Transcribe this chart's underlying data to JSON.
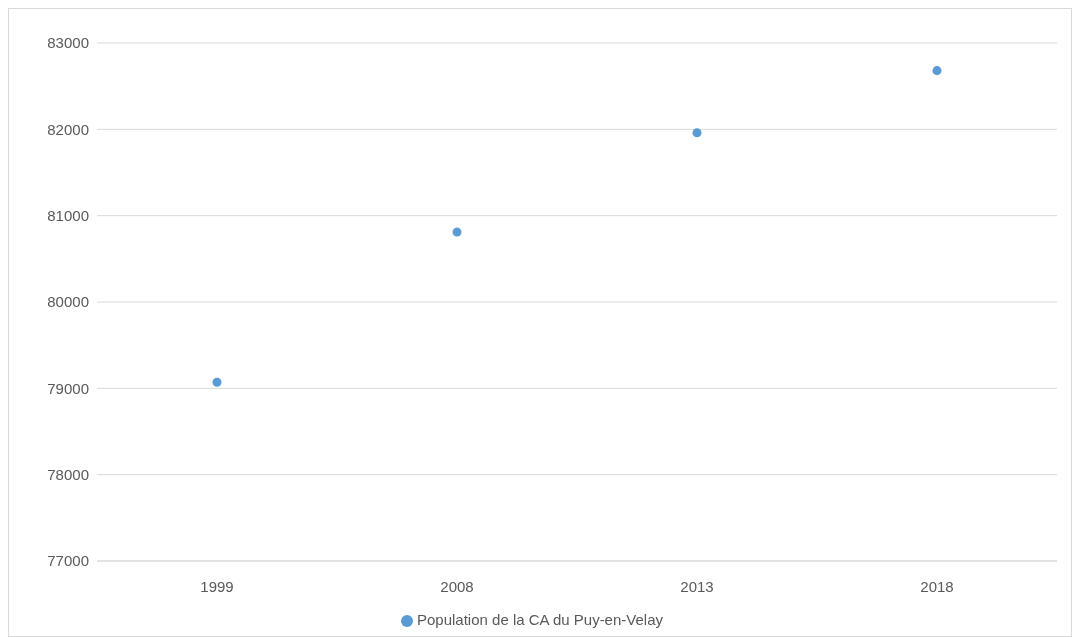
{
  "chart_data": {
    "type": "scatter",
    "categories": [
      "1999",
      "2008",
      "2013",
      "2018"
    ],
    "series": [
      {
        "name": "Population de la CA du Puy-en-Velay",
        "color": "#5b9bd5",
        "values": [
          79070,
          80810,
          81960,
          82680
        ]
      }
    ],
    "ylim": [
      77000,
      83000
    ],
    "yticks": [
      77000,
      78000,
      79000,
      80000,
      81000,
      82000,
      83000
    ],
    "grid": "y",
    "legend": "bottom",
    "marker": "circle"
  }
}
